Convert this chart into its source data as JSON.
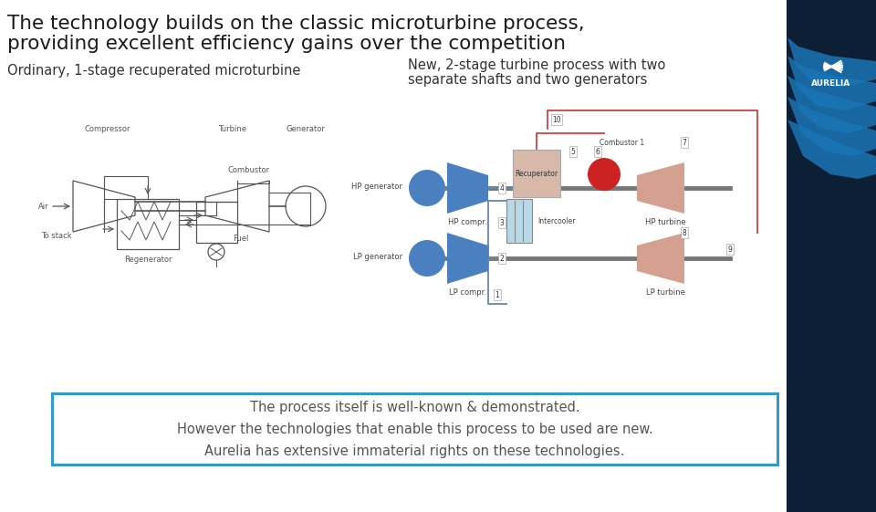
{
  "title_line1": "The technology builds on the classic microturbine process,",
  "title_line2": "providing excellent efficiency gains over the competition",
  "subtitle_left": "Ordinary, 1-stage recuperated microturbine",
  "subtitle_right_1": "New, 2-stage turbine process with two",
  "subtitle_right_2": "separate shafts and two generators",
  "box_text_line1": "The process itself is well-known & demonstrated.",
  "box_text_line2": "However the technologies that enable this process to be used are new.",
  "box_text_line3": "Aurelia has extensive immaterial rights on these technologies.",
  "bg_color": "#ffffff",
  "title_color": "#1a1a1a",
  "subtitle_color": "#333333",
  "box_border_color": "#3399cc",
  "box_text_color": "#555555",
  "right_panel_color": "#0d1f35",
  "diagram_blue": "#4a80c0",
  "diagram_pink": "#d4a090",
  "diagram_red": "#cc2222",
  "diagram_gray": "#888888",
  "left_diagram_color": "#555555",
  "aurelia_text_color": "#ffffff"
}
